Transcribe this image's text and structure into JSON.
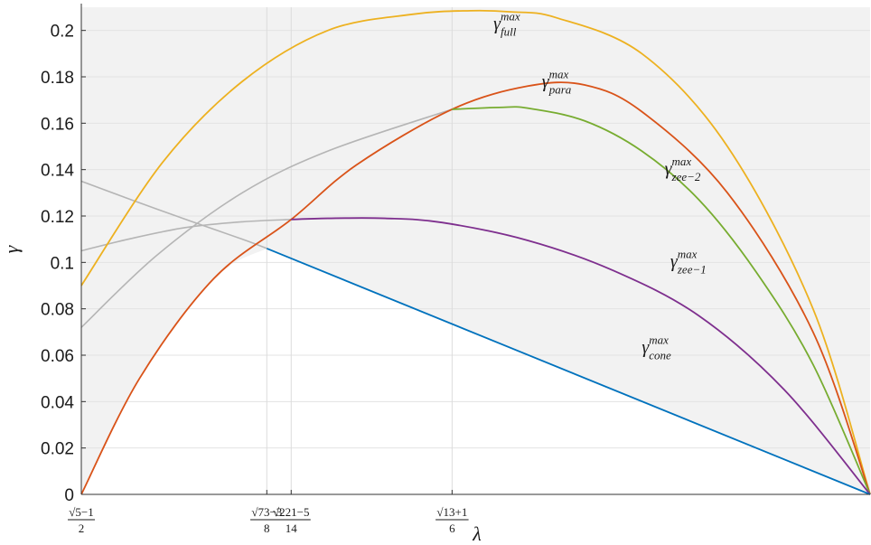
{
  "chart_data": {
    "type": "line",
    "xlabel": "λ",
    "ylabel": "γ",
    "ylim": [
      0,
      0.21
    ],
    "xlim": [
      0.618,
      2.0
    ],
    "y_ticks": [
      "0",
      "0.02",
      "0.04",
      "0.06",
      "0.08",
      "0.1",
      "0.12",
      "0.14",
      "0.16",
      "0.18",
      "0.2"
    ],
    "x_ticks": [
      {
        "value": 0.618,
        "num": "√5−1",
        "den": "2"
      },
      {
        "value": 0.943,
        "num": "√73−3",
        "den": "8"
      },
      {
        "value": 0.9857,
        "num": "√221−5",
        "den": "14"
      },
      {
        "value": 1.2676,
        "num": "√13+1",
        "den": "6"
      }
    ],
    "grid": true,
    "shaded_region": "above the lower envelope of the curves",
    "colors": {
      "full": "#edb120",
      "para": "#d95319",
      "zee2": "#77ac30",
      "zee1": "#7e2f8e",
      "cone": "#0072bd",
      "gray": "#b5b5b5",
      "shade": "#f2f2f2"
    },
    "series": [
      {
        "name": "γ_full^max",
        "label_base": "γ",
        "label_sup": "max",
        "label_sub": "full",
        "color": "#edb120",
        "x": [
          0.618,
          0.76,
          0.9,
          1.05,
          1.2,
          1.3,
          1.37,
          1.45,
          1.6,
          1.75,
          1.9,
          2.0
        ],
        "y": [
          0.09,
          0.143,
          0.178,
          0.2,
          0.207,
          0.2085,
          0.208,
          0.2055,
          0.19,
          0.15,
          0.08,
          0.0
        ]
      },
      {
        "name": "γ_para^max",
        "label_base": "γ",
        "label_sup": "max",
        "label_sub": "para",
        "color": "#d95319",
        "x": [
          0.618,
          0.72,
          0.85,
          0.9857,
          1.1,
          1.2676,
          1.4,
          1.5,
          1.6,
          1.75,
          1.9,
          2.0
        ],
        "y": [
          0.0,
          0.05,
          0.093,
          0.1185,
          0.142,
          0.166,
          0.176,
          0.1765,
          0.165,
          0.13,
          0.07,
          0.0
        ]
      },
      {
        "name": "γ_zee−2^max",
        "label_base": "γ",
        "label_sup": "max",
        "label_sub": "zee−2",
        "color": "#77ac30",
        "x": [
          1.2676,
          1.35,
          1.4,
          1.5,
          1.6,
          1.7,
          1.8,
          1.9,
          2.0
        ],
        "y": [
          0.166,
          0.1668,
          0.1665,
          0.161,
          0.148,
          0.127,
          0.096,
          0.056,
          0.0
        ]
      },
      {
        "name": "γ_zee−1^max",
        "label_base": "γ",
        "label_sup": "max",
        "label_sub": "zee−1",
        "color": "#7e2f8e",
        "x": [
          0.9857,
          1.05,
          1.15,
          1.25,
          1.4,
          1.55,
          1.7,
          1.85,
          2.0
        ],
        "y": [
          0.1185,
          0.119,
          0.119,
          0.1172,
          0.1095,
          0.0965,
          0.077,
          0.045,
          0.0
        ]
      },
      {
        "name": "γ_cone^max",
        "label_base": "γ",
        "label_sup": "max",
        "label_sub": "cone",
        "color": "#0072bd",
        "x": [
          0.943,
          2.0
        ],
        "y": [
          0.106,
          0.0
        ]
      }
    ],
    "gray_series": [
      {
        "x": [
          0.618,
          0.75,
          0.9,
          0.943
        ],
        "y": [
          0.135,
          0.123,
          0.11,
          0.106
        ]
      },
      {
        "x": [
          0.618,
          0.7,
          0.8,
          0.9,
          0.9857
        ],
        "y": [
          0.105,
          0.11,
          0.115,
          0.1175,
          0.1185
        ]
      },
      {
        "x": [
          0.618,
          0.75,
          0.9,
          1.05,
          1.2676
        ],
        "y": [
          0.072,
          0.103,
          0.13,
          0.148,
          0.166
        ]
      }
    ]
  }
}
